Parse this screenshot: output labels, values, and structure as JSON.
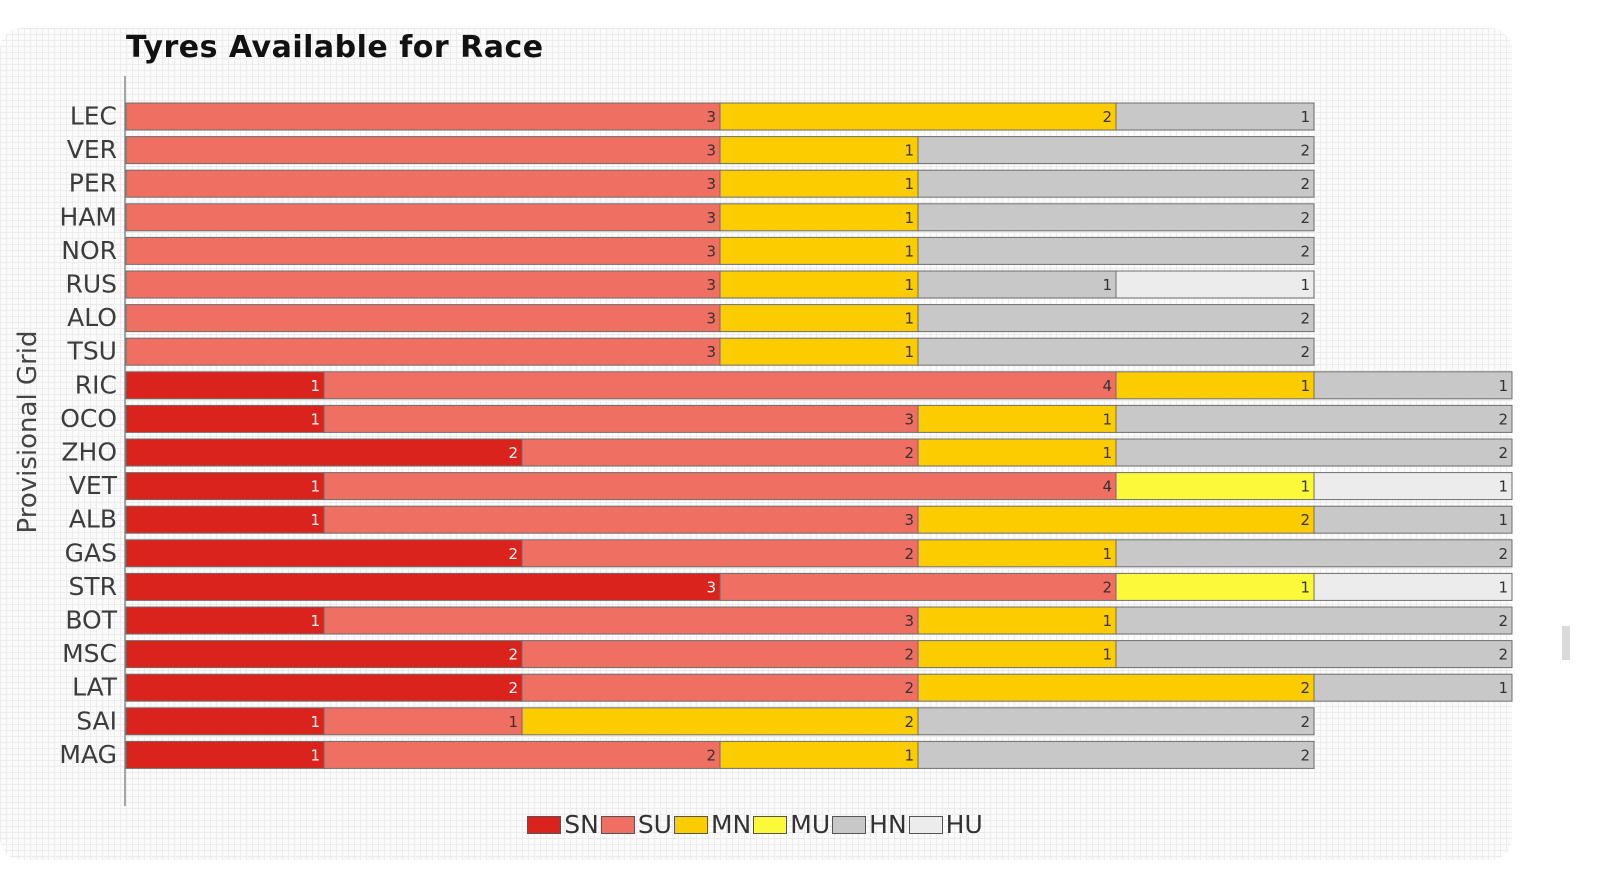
{
  "chart_data": {
    "type": "bar",
    "orientation": "horizontal",
    "stacked": true,
    "title": "Tyres Available for Race",
    "ylabel": "Provisional Grid",
    "xlabel": "",
    "xlim": [
      0,
      7
    ],
    "grid": false,
    "legend_position": "bottom",
    "categories": [
      "LEC",
      "VER",
      "PER",
      "HAM",
      "NOR",
      "RUS",
      "ALO",
      "TSU",
      "RIC",
      "OCO",
      "ZHO",
      "VET",
      "ALB",
      "GAS",
      "STR",
      "BOT",
      "MSC",
      "LAT",
      "SAI",
      "MAG"
    ],
    "series": [
      {
        "name": "SN",
        "color": "#d9231c",
        "values": [
          0,
          0,
          0,
          0,
          0,
          0,
          0,
          0,
          1,
          1,
          2,
          1,
          1,
          2,
          3,
          1,
          2,
          2,
          1,
          1
        ]
      },
      {
        "name": "SU",
        "color": "#ef6f63",
        "values": [
          3,
          3,
          3,
          3,
          3,
          3,
          3,
          3,
          4,
          3,
          2,
          4,
          3,
          2,
          2,
          3,
          2,
          2,
          1,
          2
        ]
      },
      {
        "name": "MN",
        "color": "#fbcc00",
        "values": [
          2,
          1,
          1,
          1,
          1,
          1,
          1,
          1,
          1,
          1,
          1,
          0,
          2,
          1,
          0,
          1,
          1,
          2,
          2,
          1
        ]
      },
      {
        "name": "MU",
        "color": "#fbf93a",
        "values": [
          0,
          0,
          0,
          0,
          0,
          0,
          0,
          0,
          0,
          0,
          0,
          1,
          0,
          0,
          1,
          0,
          0,
          0,
          0,
          0
        ]
      },
      {
        "name": "HN",
        "color": "#c8c8c8",
        "values": [
          1,
          2,
          2,
          2,
          2,
          1,
          2,
          2,
          1,
          2,
          2,
          0,
          1,
          2,
          0,
          2,
          2,
          1,
          2,
          2
        ]
      },
      {
        "name": "HU",
        "color": "#ececec",
        "values": [
          0,
          0,
          0,
          0,
          0,
          1,
          0,
          0,
          0,
          0,
          0,
          1,
          0,
          0,
          1,
          0,
          0,
          0,
          0,
          0
        ]
      }
    ]
  }
}
